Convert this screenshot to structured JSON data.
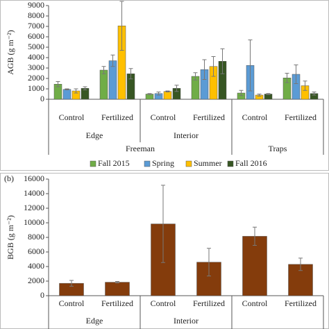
{
  "chart_data": [
    {
      "type": "bar",
      "y_label": "AGB (g m⁻²)",
      "ylim": [
        0,
        9000
      ],
      "yticks": [
        0,
        1000,
        2000,
        3000,
        4000,
        5000,
        6000,
        7000,
        8000,
        9000
      ],
      "groups": [
        {
          "name": "Freeman",
          "groups": [
            {
              "name": "Edge",
              "categories": [
                "Control",
                "Fertilized"
              ]
            },
            {
              "name": "Interior",
              "categories": [
                "Control",
                "Fertilized"
              ]
            }
          ]
        },
        {
          "name": "Traps",
          "categories": [
            "Control",
            "Fertilized"
          ]
        }
      ],
      "series": [
        {
          "name": "Fall 2015",
          "color": "#70ad47",
          "values": [
            1450,
            2800,
            500,
            2200,
            600,
            2050
          ],
          "errors": [
            250,
            350,
            50,
            350,
            250,
            450
          ]
        },
        {
          "name": "Spring",
          "color": "#5b9bd5",
          "values": [
            950,
            3700,
            550,
            2850,
            3250,
            2400
          ],
          "errors": [
            50,
            550,
            150,
            950,
            2450,
            900
          ]
        },
        {
          "name": "Summer",
          "color": "#ffc000",
          "values": [
            800,
            7050,
            750,
            3150,
            400,
            1300
          ],
          "errors": [
            200,
            2350,
            50,
            950,
            100,
            450
          ]
        },
        {
          "name": "Fall 2016",
          "color": "#375623",
          "values": [
            1050,
            2450,
            1050,
            3650,
            500,
            550
          ],
          "errors": [
            150,
            500,
            300,
            1200,
            50,
            150
          ]
        }
      ],
      "legend": "bottom"
    },
    {
      "type": "bar",
      "panel_label": "(b)",
      "y_label": "BGB (g m⁻²)",
      "ylim": [
        0,
        16000
      ],
      "yticks": [
        0,
        2000,
        4000,
        6000,
        8000,
        10000,
        12000,
        14000,
        16000
      ],
      "groups": [
        {
          "name": "Edge",
          "categories": [
            "Control",
            "Fertilized"
          ]
        },
        {
          "name": "Interior",
          "categories": [
            "Control",
            "Fertilized"
          ]
        },
        {
          "categories": [
            "Control",
            "Fertilized"
          ]
        }
      ],
      "series": [
        {
          "color": "#843c0c",
          "values": [
            1700,
            1850,
            9850,
            4600,
            8150,
            4300
          ],
          "errors": [
            400,
            100,
            5300,
            1900,
            1250,
            850
          ]
        }
      ]
    }
  ]
}
